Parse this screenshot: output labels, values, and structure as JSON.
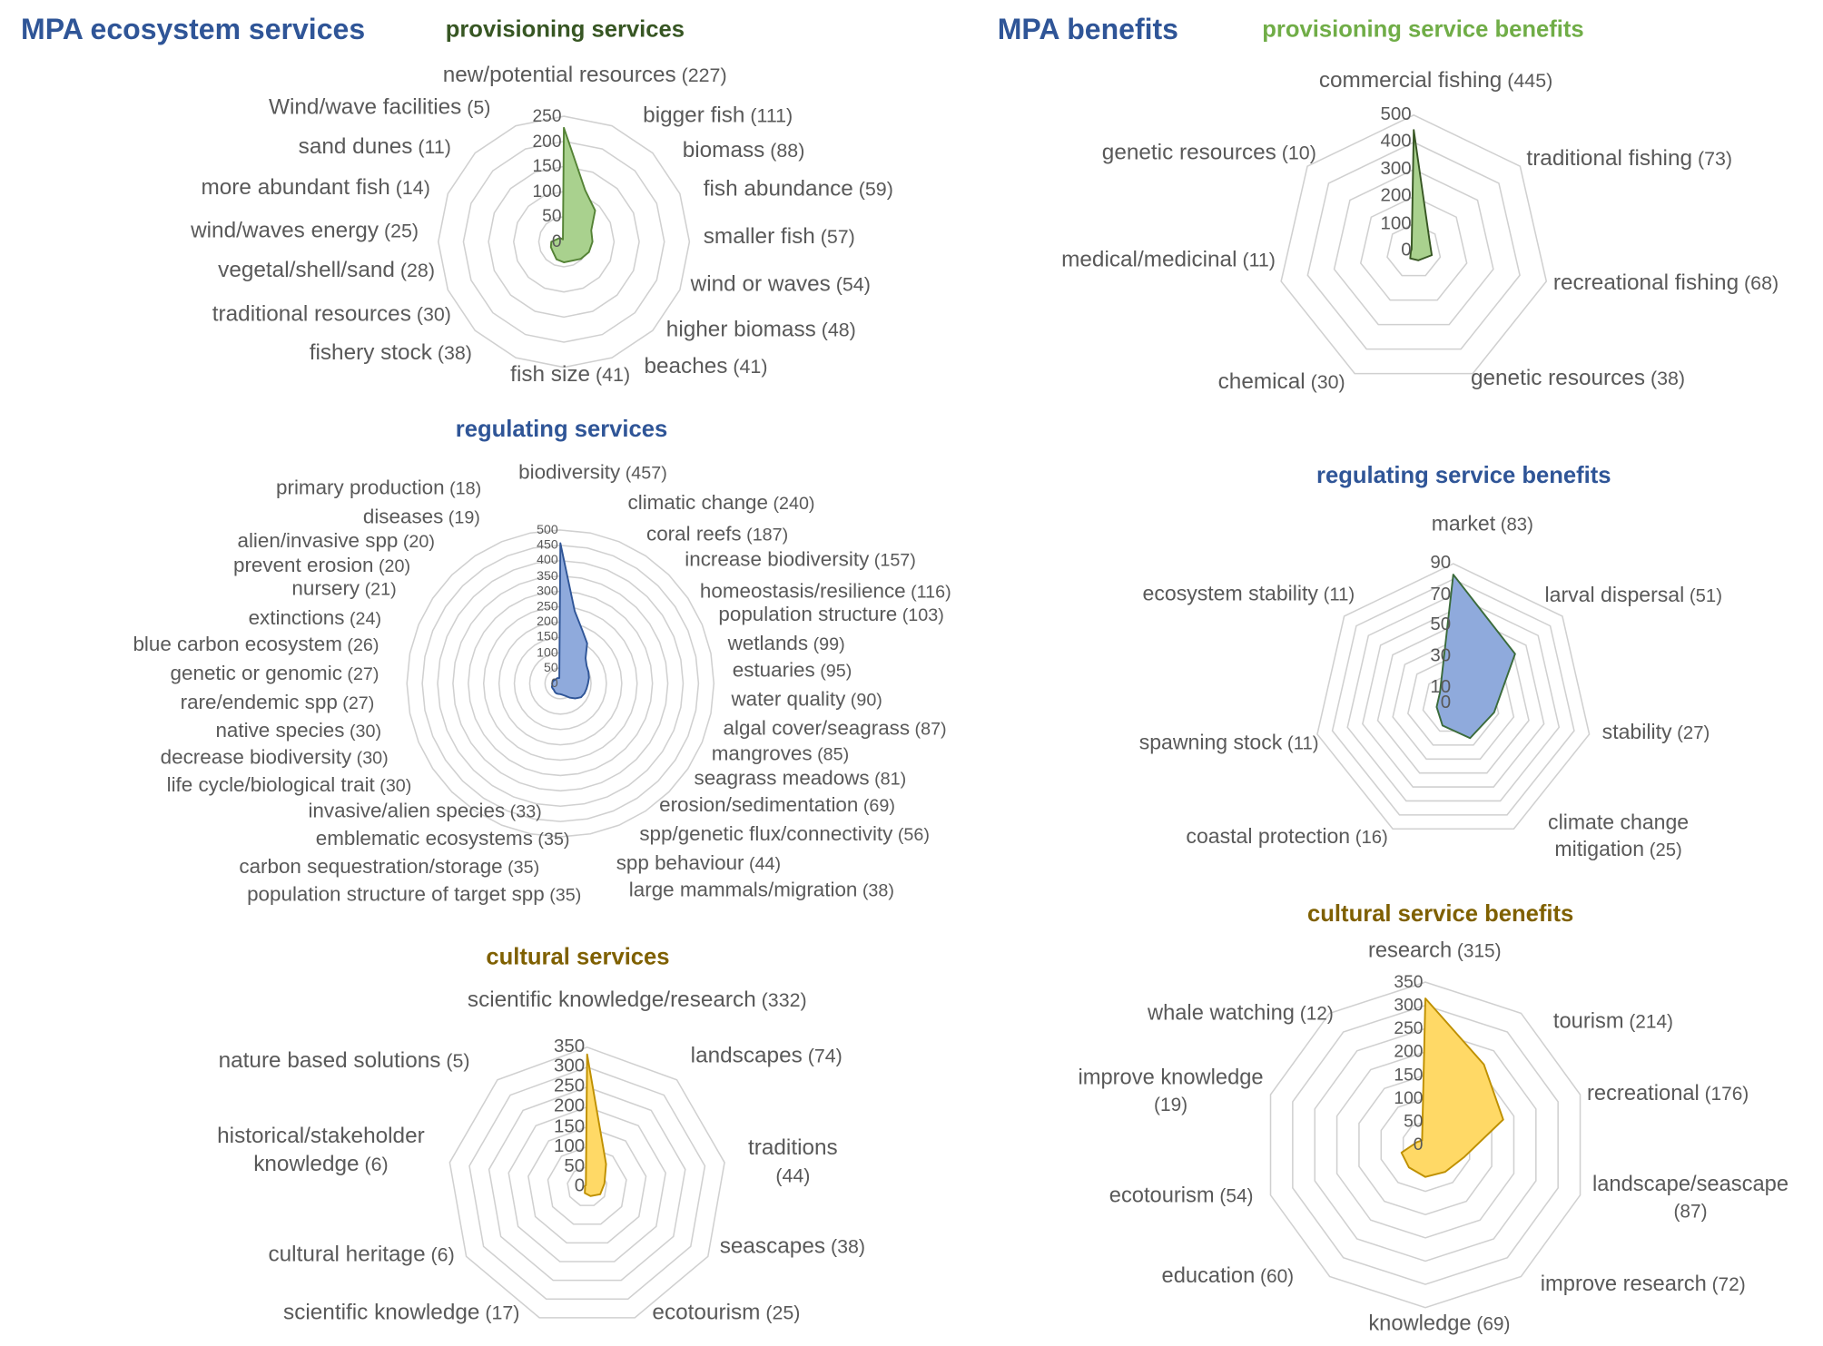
{
  "titles": {
    "left": "MPA ecosystem services",
    "right": "MPA benefits"
  },
  "chart_data": [
    {
      "type": "radar",
      "title": "provisioning services",
      "title_color": "#375623",
      "fill": "#a9d18e",
      "stroke": "#548235",
      "rmax": 250,
      "ticks": [
        "0",
        "50",
        "100",
        "150",
        "200",
        "250"
      ],
      "categories": [
        "new/potential resources",
        "bigger fish",
        "biomass",
        "fish abundance",
        "smaller fish",
        "wind or waves",
        "higher biomass",
        "beaches",
        "fish size",
        "fishery stock",
        "traditional resources",
        "vegetal/shell/sand",
        "wind/waves energy",
        "more abundant fish",
        "sand dunes",
        "Wind/wave facilities"
      ],
      "values": [
        227,
        111,
        88,
        59,
        57,
        54,
        48,
        41,
        41,
        38,
        30,
        28,
        25,
        14,
        11,
        5
      ]
    },
    {
      "type": "radar",
      "title": "regulating services",
      "title_color": "#2f5597",
      "fill": "#8faadc",
      "stroke": "#2f5597",
      "rmax": 500,
      "ticks": [
        "0",
        "50",
        "100",
        "150",
        "200",
        "250",
        "300",
        "350",
        "400",
        "450",
        "500"
      ],
      "categories": [
        "biodiversity",
        "climatic change",
        "coral reefs",
        "increase biodiversity",
        "homeostasis/resilience",
        "population structure",
        "wetlands",
        "estuaries",
        "water quality",
        "algal cover/seagrass",
        "mangroves",
        "seagrass meadows",
        "erosion/sedimentation",
        "spp/genetic flux/connectivity",
        "spp behaviour",
        "large mammals/migration",
        "population structure of target spp",
        "carbon sequestration/storage",
        "emblematic ecosystems",
        "invasive/alien species",
        "life cycle/biological trait",
        "decrease biodiversity",
        "native species",
        "rare/endemic spp",
        "genetic or genomic",
        "blue carbon ecosystem",
        "extinctions",
        "nursery",
        "prevent erosion",
        "alien/invasive spp",
        "diseases",
        "primary production"
      ],
      "values": [
        457,
        240,
        187,
        157,
        116,
        103,
        99,
        95,
        90,
        87,
        85,
        81,
        69,
        56,
        44,
        38,
        35,
        35,
        35,
        33,
        30,
        30,
        30,
        27,
        27,
        26,
        24,
        21,
        20,
        20,
        19,
        18
      ]
    },
    {
      "type": "radar",
      "title": "cultural services",
      "title_color": "#7f6000",
      "fill": "#ffd966",
      "stroke": "#bf9000",
      "rmax": 350,
      "ticks": [
        "0",
        "50",
        "100",
        "150",
        "200",
        "250",
        "300",
        "350"
      ],
      "categories": [
        "scientific knowledge/research",
        "landscapes",
        "traditions",
        "seascapes",
        "ecotourism",
        "scientific knowledge",
        "cultural heritage",
        "historical/stakeholder knowledge",
        "nature based solutions"
      ],
      "values": [
        332,
        74,
        44,
        38,
        25,
        17,
        6,
        6,
        5
      ]
    },
    {
      "type": "radar",
      "title": "provisioning service benefits",
      "title_color": "#70ad47",
      "fill": "#a9d18e",
      "stroke": "#375623",
      "rmax": 500,
      "ticks": [
        "0",
        "100",
        "200",
        "300",
        "400",
        "500"
      ],
      "categories": [
        "commercial fishing",
        "traditional fishing",
        "recreational fishing",
        "genetic resources",
        "chemical",
        "medical/medicinal",
        "genetic resources"
      ],
      "values": [
        445,
        73,
        68,
        38,
        30,
        11,
        10
      ]
    },
    {
      "type": "radar",
      "title": "regulating service benefits",
      "title_color": "#2f5597",
      "fill": "#8faadc",
      "stroke": "#3b6b3b",
      "rmax": 90,
      "ticks": [
        "0",
        "10",
        "30",
        "50",
        "70",
        "90"
      ],
      "categories": [
        "market",
        "larval dispersal",
        "stability",
        "climate change mitigation",
        "coastal protection",
        "spawning stock",
        "ecosystem stability"
      ],
      "values": [
        83,
        51,
        27,
        25,
        16,
        11,
        11
      ]
    },
    {
      "type": "radar",
      "title": "cultural service benefits",
      "title_color": "#7f6000",
      "fill": "#ffd966",
      "stroke": "#bf9000",
      "rmax": 350,
      "ticks": [
        "0",
        "50",
        "100",
        "150",
        "200",
        "250",
        "300",
        "350"
      ],
      "categories": [
        "research",
        "tourism",
        "recreational",
        "landscape/seascape",
        "improve research",
        "knowledge",
        "education",
        "ecotourism",
        "improve knowledge",
        "whale watching"
      ],
      "values": [
        315,
        214,
        176,
        87,
        72,
        69,
        60,
        54,
        19,
        12
      ]
    }
  ]
}
